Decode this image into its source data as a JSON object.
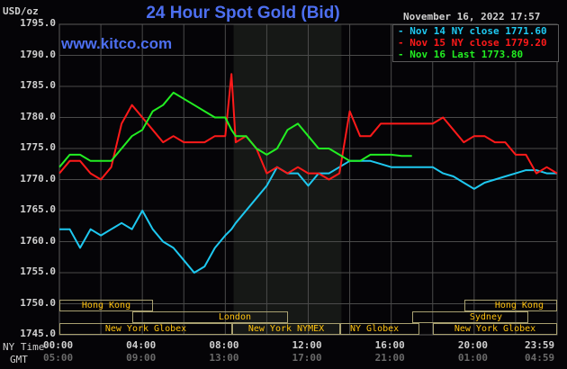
{
  "header": {
    "title": "24 Hour Spot Gold (Bid)",
    "unit": "USD/oz",
    "datetime": "November 16, 2022 17:57",
    "site": "www.kitco.com"
  },
  "legend": [
    {
      "label": "Nov 14 NY close 1771.60",
      "color": "#1ec8f0"
    },
    {
      "label": "Nov 15 NY close 1779.20",
      "color": "#ff1a1a"
    },
    {
      "label": "Nov 16 Last 1773.80",
      "color": "#22ee22"
    }
  ],
  "axis": {
    "y_ticks": [
      "1795.0",
      "1790.0",
      "1785.0",
      "1780.0",
      "1775.0",
      "1770.0",
      "1765.0",
      "1760.0",
      "1755.0",
      "1750.0",
      "1745.0"
    ],
    "x_row_label_ny": "NY Time",
    "x_row_label_gmt": "GMT",
    "x_ticks_ny": [
      "00:00",
      "04:00",
      "08:00",
      "12:00",
      "16:00",
      "20:00",
      "23:59"
    ],
    "x_ticks_gmt": [
      "05:00",
      "09:00",
      "13:00",
      "17:00",
      "21:00",
      "01:00",
      "04:59"
    ]
  },
  "sessions": {
    "row1": [
      {
        "label": "Hong Kong"
      },
      {
        "label": "Hong Kong"
      }
    ],
    "row2": [
      {
        "label": "London"
      },
      {
        "label": "Sydney"
      }
    ],
    "row3": [
      {
        "label": "New York Globex"
      },
      {
        "label": "New York NYMEX"
      },
      {
        "label": "NY Globex"
      },
      {
        "label": "New York Globex"
      }
    ]
  },
  "chart_data": {
    "type": "line",
    "title": "24 Hour Spot Gold (Bid)",
    "xlabel": "NY Time / GMT",
    "ylabel": "USD/oz",
    "ylim": [
      1745,
      1795
    ],
    "xlim_hours": [
      0,
      24
    ],
    "grid": true,
    "shaded_region_hours": [
      8.4,
      13.6
    ],
    "legend_position": "top-right",
    "x_hours": [
      0,
      0.5,
      1,
      1.5,
      2,
      2.5,
      3,
      3.5,
      4,
      4.5,
      5,
      5.5,
      6,
      6.5,
      7,
      7.5,
      8,
      8.3,
      8.5,
      9,
      9.5,
      10,
      10.5,
      11,
      11.5,
      12,
      12.5,
      13,
      13.5,
      14,
      14.5,
      15,
      15.5,
      16,
      16.5,
      17,
      17.5,
      18,
      18.5,
      19,
      19.5,
      20,
      20.5,
      21,
      21.5,
      22,
      22.5,
      23,
      23.5,
      24
    ],
    "series": [
      {
        "name": "Nov 14 NY close 1771.60",
        "color": "#1ec8f0",
        "values": [
          1762,
          1762,
          1759,
          1762,
          1761,
          1762,
          1763,
          1762,
          1765,
          1762,
          1760,
          1759,
          1757,
          1755,
          1756,
          1759,
          1761,
          1762,
          1763,
          1765,
          1767,
          1769,
          1772,
          1771,
          1771,
          1769,
          1771,
          1771,
          1772,
          1773,
          1773,
          1773,
          1772.5,
          1772,
          1772,
          1772,
          1772,
          1772,
          1771,
          1770.5,
          1769.5,
          1768.5,
          1769.5,
          1770,
          1770.5,
          1771,
          1771.5,
          1771.5,
          1771,
          1771
        ]
      },
      {
        "name": "Nov 15 NY close 1779.20",
        "color": "#ff1a1a",
        "values": [
          1771,
          1773,
          1773,
          1771,
          1770,
          1772,
          1779,
          1782,
          1780,
          1778,
          1776,
          1777,
          1776,
          1776,
          1776,
          1777,
          1777,
          1787,
          1776,
          1777,
          1775,
          1771,
          1772,
          1771,
          1772,
          1771,
          1771,
          1770,
          1771,
          1781,
          1777,
          1777,
          1779,
          1779,
          1779,
          1779,
          1779,
          1779,
          1780,
          1778,
          1776,
          1777,
          1777,
          1776,
          1776,
          1774,
          1774,
          1771,
          1772,
          1771
        ]
      },
      {
        "name": "Nov 16 Last 1773.80",
        "color": "#22ee22",
        "values": [
          1772,
          1774,
          1774,
          1773,
          1773,
          1773,
          1775,
          1777,
          1778,
          1781,
          1782,
          1784,
          1783,
          1782,
          1781,
          1780,
          1780,
          1778,
          1777,
          1777,
          1775,
          1774,
          1775,
          1778,
          1779,
          1777,
          1775,
          1775,
          1774,
          1773,
          1773,
          1774,
          1774,
          1774,
          1773.8,
          1773.8
        ]
      }
    ]
  }
}
